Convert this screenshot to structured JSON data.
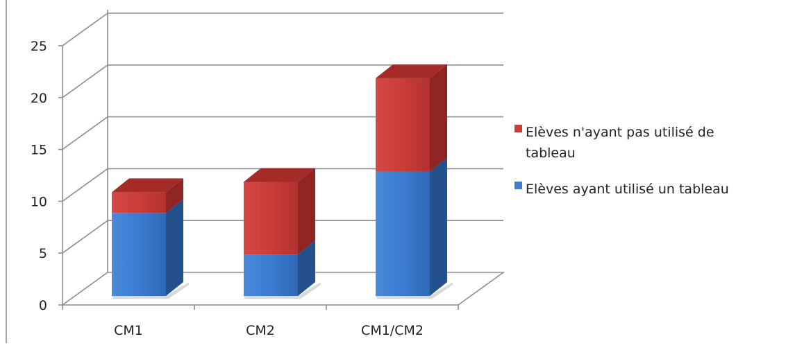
{
  "chart_data": {
    "type": "bar",
    "stacked": true,
    "three_d": true,
    "categories": [
      "CM1",
      "CM2",
      "CM1/CM2"
    ],
    "series": [
      {
        "name": "Elèves ayant utilisé un tableau",
        "values": [
          8,
          4,
          12
        ],
        "color": "#3f7fcf"
      },
      {
        "name": "Elèves n'ayant pas utilisé de tableau",
        "values": [
          2,
          7,
          9
        ],
        "color": "#c93c3a"
      }
    ],
    "y_ticks": [
      "0",
      "5",
      "10",
      "15",
      "20",
      "25"
    ],
    "ylim": [
      0,
      25
    ],
    "grid": true,
    "legend_position": "right",
    "legend_entries": [
      {
        "lines": [
          "Elèves n'ayant pas utilisé de",
          "tableau"
        ],
        "color": "#c93c3a"
      },
      {
        "lines": [
          "Elèves ayant utilisé un tableau"
        ],
        "color": "#3f7fcf"
      }
    ]
  }
}
